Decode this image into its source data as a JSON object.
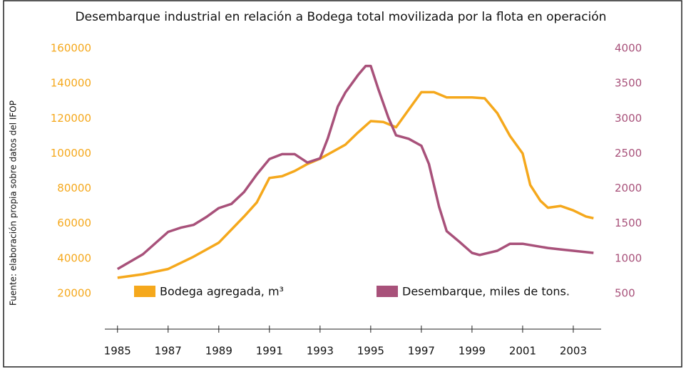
{
  "chart_data": {
    "type": "line",
    "subtitle": "Desembarque industrial en relación a Bodega total movilizada por la flota en operación",
    "y_axis_label": "Fuente: elaboración propia sobre datos del IFOP",
    "xlim": [
      1984.5,
      2004.1
    ],
    "xticks": [
      1985,
      1987,
      1989,
      1991,
      1993,
      1995,
      1997,
      1999,
      2001,
      2003
    ],
    "ylim": [
      20000,
      160000
    ],
    "yticks": [
      20000,
      40000,
      60000,
      80000,
      100000,
      120000,
      140000,
      160000
    ],
    "y2lim": [
      500,
      4000
    ],
    "y2ticks": [
      500,
      1000,
      1500,
      2000,
      2500,
      3000,
      3500,
      4000
    ],
    "series": [
      {
        "name": "Bodega agregada, m³",
        "color": "#f5a81c",
        "x": [
          1985,
          1986,
          1987,
          1988,
          1989,
          1990,
          1990.5,
          1991,
          1991.5,
          1992,
          1992.5,
          1993,
          1994,
          1994.5,
          1995,
          1995.5,
          1996,
          1996.5,
          1997,
          1997.5,
          1998,
          1999,
          1999.5,
          2000,
          2000.5,
          2001,
          2001.3,
          2001.7,
          2002,
          2002.5,
          2003,
          2003.5,
          2003.8
        ],
        "values": [
          29000,
          31000,
          34000,
          41000,
          49000,
          64000,
          72000,
          86000,
          87000,
          90000,
          94000,
          97000,
          105000,
          112000,
          118500,
          118000,
          115000,
          125000,
          135000,
          135000,
          132000,
          132000,
          131500,
          123000,
          110000,
          100000,
          82000,
          73000,
          69000,
          70000,
          67500,
          64000,
          63000
        ]
      },
      {
        "name": "Desembarque, miles de tons.",
        "color": "#a8517a",
        "axis": "y2",
        "x": [
          1985,
          1986,
          1987,
          1987.5,
          1988,
          1988.5,
          1989,
          1989.5,
          1990,
          1990.5,
          1991,
          1991.5,
          1992,
          1992.5,
          1993,
          1993.3,
          1993.7,
          1994,
          1994.5,
          1994.8,
          1995,
          1995.3,
          1995.7,
          1996,
          1996.5,
          1997,
          1997.3,
          1997.7,
          1998,
          1998.5,
          1999,
          1999.3,
          2000,
          2000.5,
          2001,
          2001.5,
          2002,
          2002.5,
          2003,
          2003.8
        ],
        "values": [
          850,
          1060,
          1380,
          1440,
          1480,
          1590,
          1720,
          1780,
          1950,
          2200,
          2420,
          2490,
          2490,
          2370,
          2430,
          2710,
          3170,
          3370,
          3620,
          3750,
          3750,
          3420,
          3010,
          2760,
          2710,
          2610,
          2350,
          1740,
          1390,
          1240,
          1080,
          1050,
          1110,
          1210,
          1210,
          1180,
          1150,
          1130,
          1110,
          1080
        ]
      }
    ]
  }
}
